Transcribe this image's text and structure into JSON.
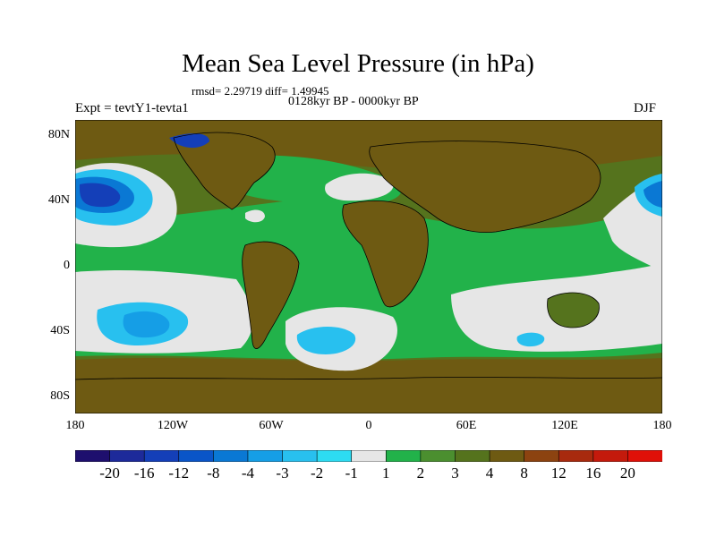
{
  "title": "Mean Sea Level Pressure (in hPa)",
  "stats_line": "rmsd= 2.29719 diff= 1.49945",
  "period": "0128kyr BP - 0000kyr BP",
  "expt_label": "Expt = tevtY1-tevta1",
  "season": "DJF",
  "lat_labels": [
    "80N",
    "40N",
    "0",
    "40S",
    "80S"
  ],
  "lon_labels": [
    "180",
    "120W",
    "60W",
    "0",
    "60E",
    "120E",
    "180"
  ],
  "colorbar": {
    "labels": [
      "-20",
      "-16",
      "-12",
      "-8",
      "-4",
      "-3",
      "-2",
      "-1",
      "1",
      "2",
      "3",
      "4",
      "8",
      "12",
      "16",
      "20"
    ],
    "colors": [
      "#1e0f6e",
      "#1d2a9a",
      "#143fb8",
      "#0a55c8",
      "#0a78d4",
      "#159ee6",
      "#28c0ef",
      "#2ddcf2",
      "#e6e6e6",
      "#22b24a",
      "#4b8f2f",
      "#55731d",
      "#6e5a12",
      "#8c4310",
      "#a82a0e",
      "#c41a0c",
      "#e01008"
    ]
  },
  "colors": {
    "land_outline": "#000000",
    "brown": "#6e5a12",
    "olive": "#55731d",
    "green": "#22b24a",
    "grey": "#e6e6e6"
  }
}
